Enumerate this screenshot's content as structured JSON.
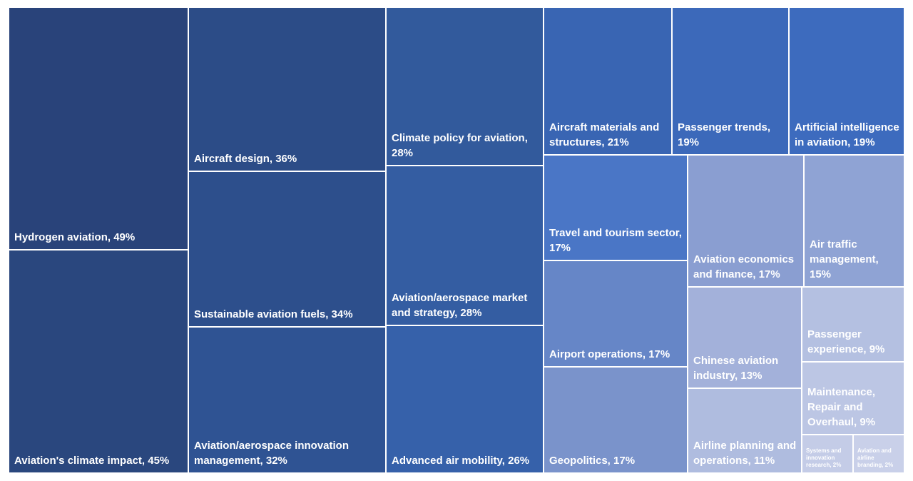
{
  "chart_data": {
    "type": "treemap",
    "items": [
      {
        "label": "Hydrogen aviation, 49%",
        "name": "Hydrogen aviation",
        "value": 49,
        "color": "#29437A"
      },
      {
        "label": "Aviation's climate impact, 45%",
        "name": "Aviation's climate impact",
        "value": 45,
        "color": "#2A477E"
      },
      {
        "label": "Aircraft design, 36%",
        "name": "Aircraft design",
        "value": 36,
        "color": "#2C4C87"
      },
      {
        "label": "Sustainable aviation fuels, 34%",
        "name": "Sustainable aviation fuels",
        "value": 34,
        "color": "#2D4F8C"
      },
      {
        "label": "Aviation/aerospace innovation management, 32%",
        "name": "Aviation/aerospace innovation management",
        "value": 32,
        "color": "#2F5393"
      },
      {
        "label": "Climate policy for aviation, 28%",
        "name": "Climate policy for aviation",
        "value": 28,
        "color": "#325A9C"
      },
      {
        "label": "Aviation/aerospace market and strategy, 28%",
        "name": "Aviation/aerospace market and strategy",
        "value": 28,
        "color": "#345DA2"
      },
      {
        "label": "Advanced air mobility, 26%",
        "name": "Advanced air mobility",
        "value": 26,
        "color": "#3661AA"
      },
      {
        "label": "Aircraft materials and structures, 21%",
        "name": "Aircraft materials and structures",
        "value": 21,
        "color": "#3965B3"
      },
      {
        "label": "Passenger trends, 19%",
        "name": "Passenger trends",
        "value": 19,
        "color": "#3C69BA"
      },
      {
        "label": "Artificial intelligence in aviation, 19%",
        "name": "Artificial intelligence in aviation",
        "value": 19,
        "color": "#3D6BBE"
      },
      {
        "label": "Travel and tourism sector, 17%",
        "name": "Travel and tourism sector",
        "value": 17,
        "color": "#4A76C6"
      },
      {
        "label": "Airport operations, 17%",
        "name": "Airport operations",
        "value": 17,
        "color": "#6686C7"
      },
      {
        "label": "Geopolitics, 17%",
        "name": "Geopolitics",
        "value": 17,
        "color": "#7A93CB"
      },
      {
        "label": "Aviation economics and finance, 17%",
        "name": "Aviation economics and finance",
        "value": 17,
        "color": "#8A9ED1"
      },
      {
        "label": "Air traffic management, 15%",
        "name": "Air traffic management",
        "value": 15,
        "color": "#8FA3D4"
      },
      {
        "label": "Chinese aviation industry, 13%",
        "name": "Chinese aviation industry",
        "value": 13,
        "color": "#A3B1DA"
      },
      {
        "label": "Airline planning and operations, 11%",
        "name": "Airline planning and operations",
        "value": 11,
        "color": "#AFBCDF"
      },
      {
        "label": "Passenger experience, 9%",
        "name": "Passenger experience",
        "value": 9,
        "color": "#B4C0E1"
      },
      {
        "label": "Maintenance, Repair and Overhaul, 9%",
        "name": "Maintenance, Repair and Overhaul",
        "value": 9,
        "color": "#BCC6E4"
      },
      {
        "label": "Systems and innovation research, 2%",
        "name": "Systems and innovation research",
        "value": 2,
        "color": "#C4CCE7"
      },
      {
        "label": "Aviation and airline branding, 2%",
        "name": "Aviation and airline branding",
        "value": 2,
        "color": "#C9D0E9"
      }
    ]
  }
}
